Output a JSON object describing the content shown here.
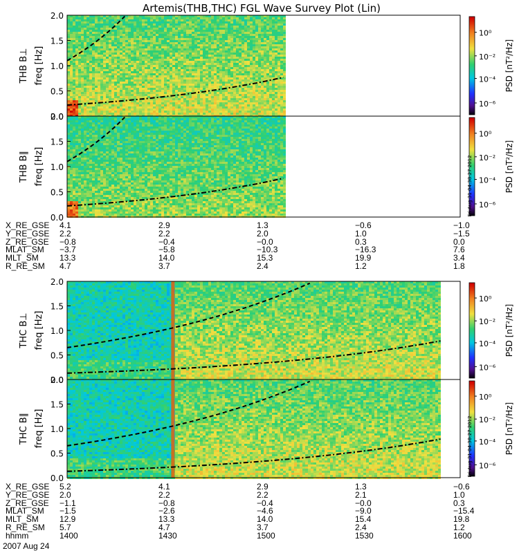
{
  "title": "Artemis(THB,THC) FGL Wave Survey Plot (Lin)",
  "colorbar": {
    "label": "PSD [nT²/Hz]",
    "ticks": [
      "10⁰",
      "10⁻²",
      "10⁻⁴",
      "10⁻⁶"
    ],
    "side_stamp": "Fri Aug 31 04:38:27 2012"
  },
  "colors": {
    "low": "#000000",
    "blue": "#2030ff",
    "cyan": "#00c8e0",
    "green": "#30d070",
    "yellow": "#f0e040",
    "orange": "#f08020",
    "red": "#d00000"
  },
  "chart_data": [
    {
      "type": "heatmap",
      "panel": "THB B⊥",
      "ylabel": "THB B⊥",
      "ylabel2": "freq [Hz]",
      "ylim": [
        0,
        2.0
      ],
      "yticks": [
        "0.0",
        "0.5",
        "1.0",
        "1.5",
        "2.0"
      ],
      "data_time_range": [
        "1400",
        "1500"
      ],
      "hour_start": 0.0,
      "hour_end": 1.1,
      "curves": [
        "dashed",
        "dash-dot"
      ]
    },
    {
      "type": "heatmap",
      "panel": "THB B∥",
      "ylabel": "THB B∥",
      "ylabel2": "freq [Hz]",
      "ylim": [
        0,
        2.0
      ],
      "yticks": [
        "0.0",
        "0.5",
        "1.0",
        "1.5",
        "2.0"
      ],
      "hour_start": 0.0,
      "hour_end": 1.1,
      "curves": [
        "dashed",
        "dash-dot"
      ]
    },
    {
      "type": "heatmap",
      "panel": "THC B⊥",
      "ylabel": "THC B⊥",
      "ylabel2": "freq [Hz]",
      "ylim": [
        0,
        2.0
      ],
      "yticks": [
        "0.0",
        "0.5",
        "1.0",
        "1.5",
        "2.0"
      ],
      "hour_start": 0.0,
      "hour_end": 1.9,
      "curves": [
        "dashed",
        "dash-dot"
      ]
    },
    {
      "type": "heatmap",
      "panel": "THC B∥",
      "ylabel": "THC B∥",
      "ylabel2": "freq [Hz]",
      "ylim": [
        0,
        2.0
      ],
      "yticks": [
        "0.0",
        "0.5",
        "1.0",
        "1.5",
        "2.0"
      ],
      "hour_start": 0.0,
      "hour_end": 1.9,
      "curves": [
        "dashed",
        "dash-dot"
      ]
    }
  ],
  "ephem_thb": {
    "labels": [
      "X_RE_GSE",
      "Y_RE_GSE",
      "Z_RE_GSE",
      "MLAT_SM",
      "MLT_SM",
      "R_RE_SM"
    ],
    "columns": [
      [
        "4.1",
        "2.2",
        "−0.8",
        "−3.7",
        "13.3",
        "4.7"
      ],
      [
        "2.9",
        "2.2",
        "−0.4",
        "−5.8",
        "14.0",
        "3.7"
      ],
      [
        "1.3",
        "2.0",
        "−0.0",
        "−10.3",
        "15.3",
        "2.4"
      ],
      [
        "−0.6",
        "1.0",
        "0.3",
        "−16.3",
        "19.9",
        "1.2"
      ],
      [
        "−1.0",
        "−1.5",
        "0.0",
        "7.6",
        "3.4",
        "1.8"
      ]
    ]
  },
  "ephem_thc": {
    "labels": [
      "X_RE_GSE",
      "Y_RE_GSE",
      "Z_RE_GSE",
      "MLAT_SM",
      "MLT_SM",
      "R_RE_SM",
      "hhmm"
    ],
    "columns": [
      [
        "5.2",
        "2.0",
        "−1.1",
        "−1.5",
        "12.9",
        "5.7",
        "1400"
      ],
      [
        "4.1",
        "2.2",
        "−0.8",
        "−2.6",
        "13.3",
        "4.7",
        "1430"
      ],
      [
        "2.9",
        "2.2",
        "−0.4",
        "−4.6",
        "14.0",
        "3.7",
        "1500"
      ],
      [
        "1.3",
        "2.1",
        "−0.0",
        "−9.0",
        "15.4",
        "2.4",
        "1530"
      ],
      [
        "−0.6",
        "1.0",
        "0.3",
        "−15.4",
        "19.8",
        "1.2",
        "1600"
      ]
    ],
    "date": "2007 Aug 24"
  }
}
